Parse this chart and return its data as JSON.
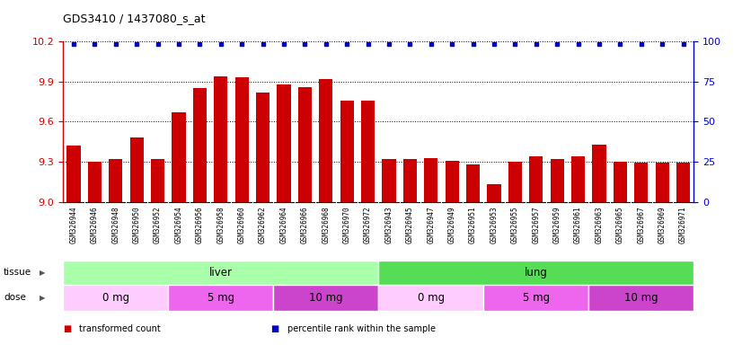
{
  "title": "GDS3410 / 1437080_s_at",
  "samples": [
    "GSM326944",
    "GSM326946",
    "GSM326948",
    "GSM326950",
    "GSM326952",
    "GSM326954",
    "GSM326956",
    "GSM326958",
    "GSM326960",
    "GSM326962",
    "GSM326964",
    "GSM326966",
    "GSM326968",
    "GSM326970",
    "GSM326972",
    "GSM326943",
    "GSM326945",
    "GSM326947",
    "GSM326949",
    "GSM326951",
    "GSM326953",
    "GSM326955",
    "GSM326957",
    "GSM326959",
    "GSM326961",
    "GSM326963",
    "GSM326965",
    "GSM326967",
    "GSM326969",
    "GSM326971"
  ],
  "values": [
    9.42,
    9.3,
    9.32,
    9.48,
    9.32,
    9.67,
    9.85,
    9.94,
    9.93,
    9.82,
    9.88,
    9.86,
    9.92,
    9.76,
    9.76,
    9.32,
    9.32,
    9.33,
    9.31,
    9.28,
    9.13,
    9.3,
    9.34,
    9.32,
    9.34,
    9.43,
    9.3,
    9.29,
    9.29,
    9.29
  ],
  "ymin": 9.0,
  "ymax": 10.2,
  "yticks_left": [
    9.0,
    9.3,
    9.6,
    9.9,
    10.2
  ],
  "yticks_right": [
    0,
    25,
    50,
    75,
    100
  ],
  "bar_color": "#cc0000",
  "dot_color": "#0000cc",
  "tissue_groups": [
    {
      "label": "liver",
      "start": 0,
      "end": 14,
      "color": "#aaffaa"
    },
    {
      "label": "lung",
      "start": 15,
      "end": 29,
      "color": "#55dd55"
    }
  ],
  "dose_groups": [
    {
      "label": "0 mg",
      "start": 0,
      "end": 4,
      "color": "#ffccff"
    },
    {
      "label": "5 mg",
      "start": 5,
      "end": 9,
      "color": "#ee66ee"
    },
    {
      "label": "10 mg",
      "start": 10,
      "end": 14,
      "color": "#cc44cc"
    },
    {
      "label": "0 mg",
      "start": 15,
      "end": 19,
      "color": "#ffccff"
    },
    {
      "label": "5 mg",
      "start": 20,
      "end": 24,
      "color": "#ee66ee"
    },
    {
      "label": "10 mg",
      "start": 25,
      "end": 29,
      "color": "#cc44cc"
    }
  ],
  "tick_bg_color": "#d8d8d8",
  "legend_items": [
    {
      "label": "transformed count",
      "color": "#cc0000"
    },
    {
      "label": "percentile rank within the sample",
      "color": "#0000cc"
    }
  ]
}
